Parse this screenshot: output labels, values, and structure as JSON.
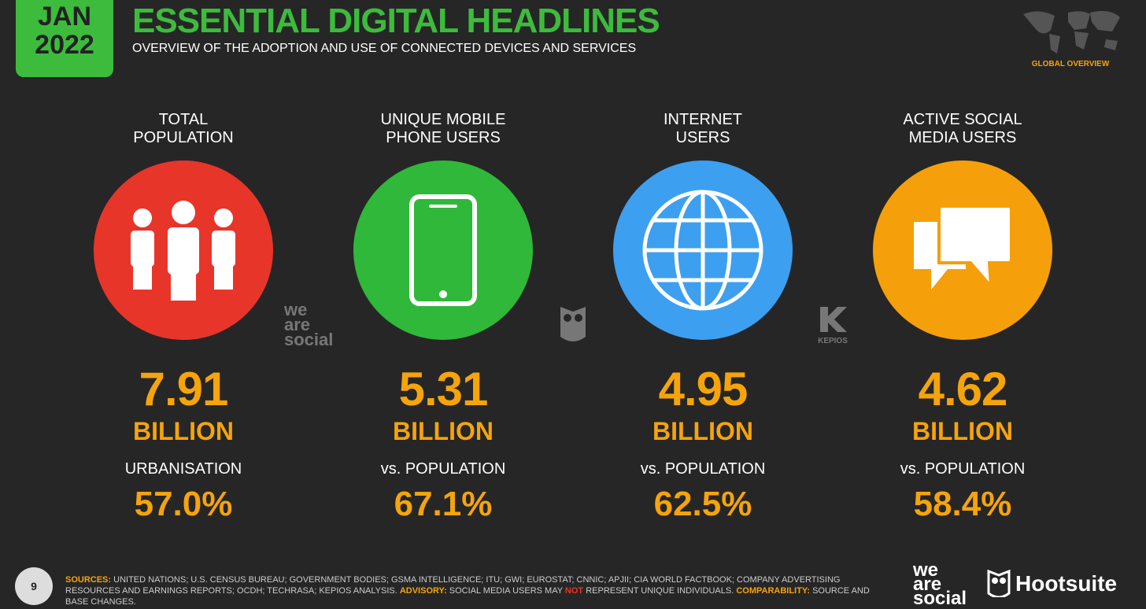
{
  "header": {
    "month": "JAN",
    "year": "2022",
    "title": "ESSENTIAL DIGITAL HEADLINES",
    "subtitle": "OVERVIEW OF THE ADOPTION AND USE OF CONNECTED DEVICES AND SERVICES",
    "section": "GLOBAL OVERVIEW"
  },
  "columns": [
    {
      "label": [
        "TOTAL",
        "POPULATION"
      ],
      "value": "7.91",
      "unit": "BILLION",
      "sublabel": "URBANISATION",
      "percent": "57.0%"
    },
    {
      "label": [
        "UNIQUE MOBILE",
        "PHONE USERS"
      ],
      "value": "5.31",
      "unit": "BILLION",
      "sublabel": "vs. POPULATION",
      "percent": "67.1%"
    },
    {
      "label": [
        "INTERNET",
        "USERS"
      ],
      "value": "4.95",
      "unit": "BILLION",
      "sublabel": "vs. POPULATION",
      "percent": "62.5%"
    },
    {
      "label": [
        "ACTIVE SOCIAL",
        "MEDIA USERS"
      ],
      "value": "4.62",
      "unit": "BILLION",
      "sublabel": "vs. POPULATION",
      "percent": "58.4%"
    }
  ],
  "logos": {
    "we_are_social": [
      "we",
      "are",
      "social"
    ],
    "kepios": "KEPIOS",
    "hootsuite": "Hootsuite"
  },
  "footer": {
    "page": "9",
    "sources": [
      "SOURCES:",
      " UNITED NATIONS; U.S. CENSUS BUREAU; GOVERNMENT BODIES; GSMA INTELLIGENCE; ITU; GWI; EUROSTAT; CNNIC; APJII; CIA WORLD FACTBOOK; COMPANY ADVERTISING RESOURCES AND EARNINGS REPORTS; OCDH; TECHRASA; KEPIOS ANALYSIS. ",
      "ADVISORY:",
      " SOCIAL MEDIA USERS MAY ",
      "NOT",
      " REPRESENT UNIQUE INDIVIDUALS. ",
      "COMPARABILITY:",
      " SOURCE AND BASE CHANGES."
    ]
  }
}
